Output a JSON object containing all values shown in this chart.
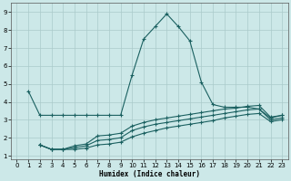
{
  "xlabel": "Humidex (Indice chaleur)",
  "xlim": [
    -0.5,
    23.5
  ],
  "ylim": [
    0.8,
    9.5
  ],
  "xticks": [
    0,
    1,
    2,
    3,
    4,
    5,
    6,
    7,
    8,
    9,
    10,
    11,
    12,
    13,
    14,
    15,
    16,
    17,
    18,
    19,
    20,
    21,
    22,
    23
  ],
  "yticks": [
    1,
    2,
    3,
    4,
    5,
    6,
    7,
    8,
    9
  ],
  "bg_color": "#cce8e8",
  "grid_color": "#aacaca",
  "line_color": "#1a6060",
  "lines": [
    {
      "x": [
        1,
        2,
        3,
        4,
        5,
        6,
        7,
        8,
        9,
        10,
        11,
        12,
        13,
        14,
        15,
        16,
        17,
        18,
        19,
        20,
        21,
        22,
        23
      ],
      "y": [
        4.6,
        3.25,
        3.25,
        3.25,
        3.25,
        3.25,
        3.25,
        3.25,
        3.25,
        5.5,
        7.5,
        8.2,
        8.9,
        8.2,
        7.4,
        5.1,
        3.85,
        3.7,
        3.7,
        3.7,
        3.6,
        3.1,
        3.25
      ]
    },
    {
      "x": [
        2,
        3,
        4,
        5,
        6,
        7,
        8,
        9,
        10,
        11,
        12,
        13,
        14,
        15,
        16,
        17,
        18,
        19,
        20,
        21,
        22,
        23
      ],
      "y": [
        1.6,
        1.35,
        1.35,
        1.55,
        1.65,
        2.1,
        2.15,
        2.25,
        2.65,
        2.85,
        3.0,
        3.1,
        3.2,
        3.3,
        3.4,
        3.5,
        3.6,
        3.65,
        3.75,
        3.8,
        3.15,
        3.25
      ]
    },
    {
      "x": [
        2,
        3,
        4,
        5,
        6,
        7,
        8,
        9,
        10,
        11,
        12,
        13,
        14,
        15,
        16,
        17,
        18,
        19,
        20,
        21,
        22,
        23
      ],
      "y": [
        1.6,
        1.35,
        1.35,
        1.45,
        1.55,
        1.85,
        1.9,
        2.0,
        2.4,
        2.6,
        2.75,
        2.85,
        2.95,
        3.05,
        3.15,
        3.25,
        3.35,
        3.45,
        3.55,
        3.6,
        3.0,
        3.1
      ]
    },
    {
      "x": [
        2,
        3,
        4,
        5,
        6,
        7,
        8,
        9,
        10,
        11,
        12,
        13,
        14,
        15,
        16,
        17,
        18,
        19,
        20,
        21,
        22,
        23
      ],
      "y": [
        1.6,
        1.35,
        1.35,
        1.35,
        1.42,
        1.6,
        1.65,
        1.75,
        2.05,
        2.25,
        2.4,
        2.55,
        2.65,
        2.75,
        2.85,
        2.95,
        3.1,
        3.2,
        3.3,
        3.35,
        2.9,
        3.0
      ]
    }
  ]
}
